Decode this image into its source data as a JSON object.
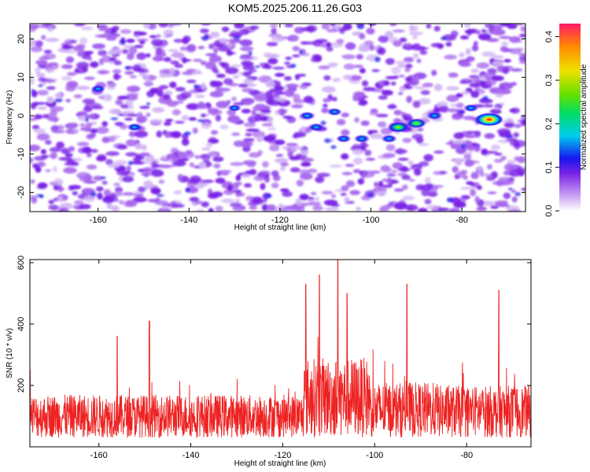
{
  "title": "KOM5.2025.206.11.26.G03",
  "chart_data": [
    {
      "type": "heatmap",
      "xlabel": "Height of straight line (km)",
      "ylabel": "Frequency (Hz)",
      "xlim": [
        -175,
        -66
      ],
      "ylim": [
        -25,
        24
      ],
      "xticks": [
        -160,
        -140,
        -120,
        -100,
        -80
      ],
      "yticks": [
        -20,
        -10,
        0,
        10,
        20
      ],
      "colorbar": {
        "label": "Normalized spectral amplitude",
        "range": [
          0.0,
          0.43
        ],
        "ticks": [
          "0.0",
          "0.1",
          "0.2",
          "0.3",
          "0.4"
        ]
      },
      "hotspots": [
        {
          "x": -114,
          "y": 0,
          "value": 0.12
        },
        {
          "x": -112,
          "y": -3,
          "value": 0.12
        },
        {
          "x": -108,
          "y": 1,
          "value": 0.1
        },
        {
          "x": -106,
          "y": -6,
          "value": 0.1
        },
        {
          "x": -102,
          "y": -6,
          "value": 0.12
        },
        {
          "x": -96,
          "y": -6,
          "value": 0.12
        },
        {
          "x": -94,
          "y": -3,
          "value": 0.24
        },
        {
          "x": -90,
          "y": -2,
          "value": 0.2
        },
        {
          "x": -86,
          "y": 0,
          "value": 0.12
        },
        {
          "x": -78,
          "y": 2,
          "value": 0.1
        },
        {
          "x": -74,
          "y": -1,
          "value": 0.38
        },
        {
          "x": -152,
          "y": -3,
          "value": 0.1
        },
        {
          "x": -160,
          "y": 7,
          "value": 0.08
        },
        {
          "x": -130,
          "y": 2,
          "value": 0.07
        }
      ]
    },
    {
      "type": "line",
      "xlabel": "Height of straight line (km)",
      "ylabel": "SNR (10 * v/v)",
      "xlim": [
        -175,
        -66
      ],
      "ylim": [
        0,
        610
      ],
      "xticks": [
        -160,
        -140,
        -120,
        -100,
        -80
      ],
      "yticks": [
        200,
        400,
        600
      ],
      "color": "#ee2222",
      "peaks": [
        {
          "x": -149,
          "y": 410
        },
        {
          "x": -156,
          "y": 360
        },
        {
          "x": -115,
          "y": 530
        },
        {
          "x": -112,
          "y": 560
        },
        {
          "x": -108,
          "y": 615
        },
        {
          "x": -106,
          "y": 500
        },
        {
          "x": -93,
          "y": 530
        },
        {
          "x": -73,
          "y": 510
        }
      ]
    }
  ]
}
